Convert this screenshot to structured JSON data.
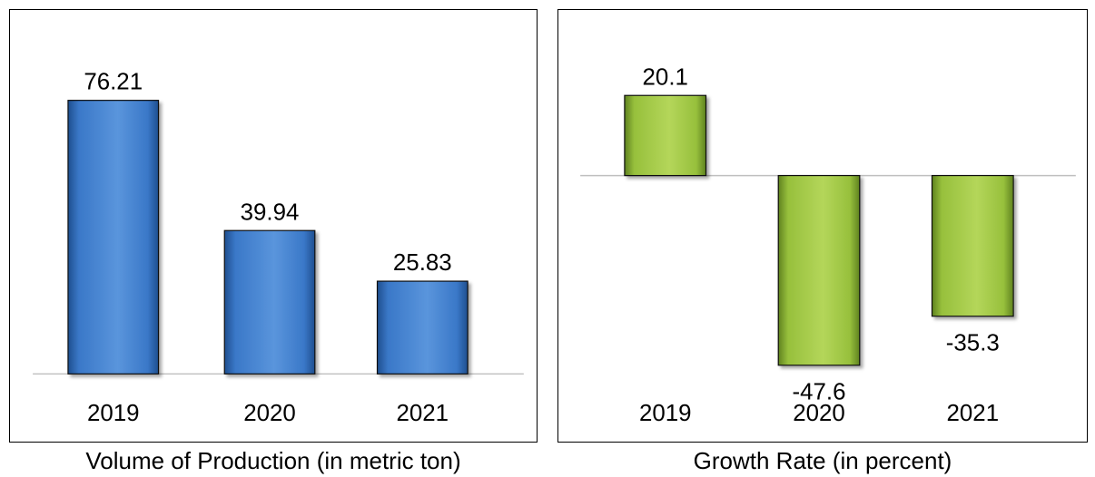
{
  "chart_data": [
    {
      "type": "bar",
      "categories": [
        "2019",
        "2020",
        "2021"
      ],
      "values": [
        76.21,
        39.94,
        25.83
      ],
      "value_labels": [
        "76.21",
        "39.94",
        "25.83"
      ],
      "caption": "Volume of Production (in metric ton)",
      "ylim": [
        0,
        80
      ],
      "grid": false,
      "legend": "none",
      "bar_color": "#3a78c8",
      "bar_color_dark": "#1f4f8f",
      "bar_color_light": "#5a95dc"
    },
    {
      "type": "bar",
      "categories": [
        "2019",
        "2020",
        "2021"
      ],
      "values": [
        20.1,
        -47.6,
        -35.3
      ],
      "value_labels": [
        "20.1",
        "-47.6",
        "-35.3"
      ],
      "caption": "Growth Rate (in percent)",
      "ylim": [
        -50,
        25
      ],
      "grid": false,
      "legend": "none",
      "bar_color": "#97c03c",
      "bar_color_dark": "#5f8220",
      "bar_color_light": "#b4d65a"
    }
  ]
}
